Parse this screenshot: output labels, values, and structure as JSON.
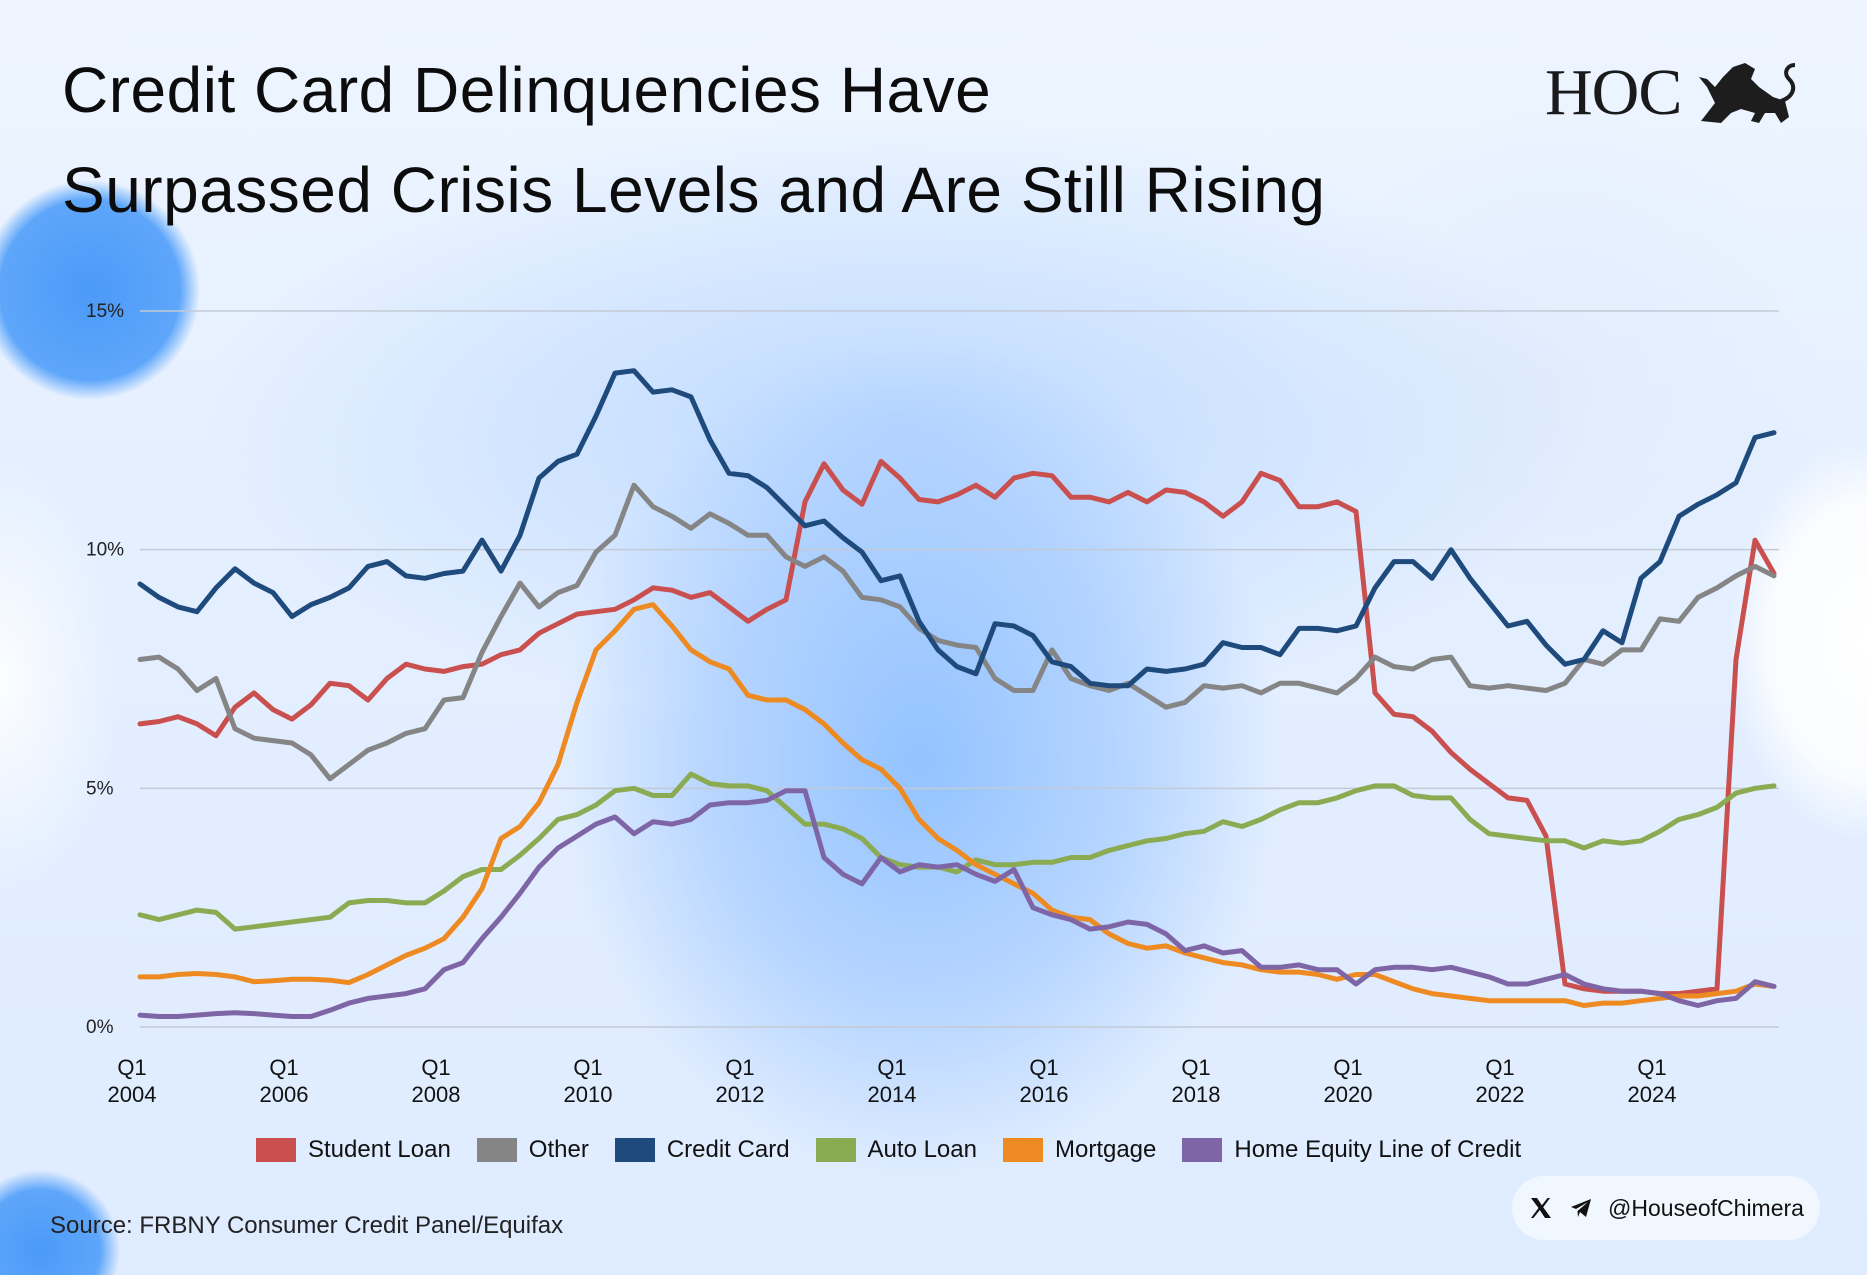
{
  "title": {
    "line1": "Credit Card Delinquencies Have",
    "line2": "Surpassed Crisis Levels and Are Still Rising"
  },
  "logo": {
    "text": "HOC",
    "icon": "lion-goat-chimera-icon"
  },
  "source": "Source: FRBNY Consumer Credit Panel/Equifax",
  "social": {
    "handle": "@HouseofChimera",
    "icons": [
      "x-logo-icon",
      "telegram-icon"
    ]
  },
  "chart_data": {
    "type": "line",
    "title": "",
    "xlabel": "",
    "ylabel": "",
    "ylim": [
      0,
      15
    ],
    "yticks": [
      0,
      5,
      10,
      15
    ],
    "ytick_labels": [
      "0%",
      "5%",
      "10%",
      "15%"
    ],
    "grid": true,
    "legend_position": "bottom",
    "x_start": "Q1 2004",
    "x_frequency": "quarterly",
    "xtick_labels": [
      {
        "q": "Q1",
        "year": "2004"
      },
      {
        "q": "Q1",
        "year": "2006"
      },
      {
        "q": "Q1",
        "year": "2008"
      },
      {
        "q": "Q1",
        "year": "2010"
      },
      {
        "q": "Q1",
        "year": "2012"
      },
      {
        "q": "Q1",
        "year": "2014"
      },
      {
        "q": "Q1",
        "year": "2016"
      },
      {
        "q": "Q1",
        "year": "2018"
      },
      {
        "q": "Q1",
        "year": "2020"
      },
      {
        "q": "Q1",
        "year": "2022"
      },
      {
        "q": "Q1",
        "year": "2024"
      }
    ],
    "series": [
      {
        "name": "Student Loan",
        "color": "#c9504f",
        "values": [
          6.35,
          6.4,
          6.5,
          6.35,
          6.1,
          6.7,
          7.0,
          6.65,
          6.45,
          6.75,
          7.2,
          7.15,
          6.85,
          7.3,
          7.6,
          7.5,
          7.45,
          7.55,
          7.6,
          7.8,
          7.9,
          8.25,
          8.45,
          8.65,
          8.7,
          8.75,
          8.95,
          9.2,
          9.15,
          9.0,
          9.1,
          8.8,
          8.5,
          8.75,
          8.95,
          11.0,
          11.8,
          11.25,
          10.95,
          11.85,
          11.5,
          11.05,
          11.0,
          11.15,
          11.35,
          11.1,
          11.5,
          11.6,
          11.55,
          11.1,
          11.1,
          11.0,
          11.2,
          11.0,
          11.25,
          11.2,
          11.0,
          10.7,
          11.0,
          11.6,
          11.45,
          10.9,
          10.9,
          11.0,
          10.8,
          7.0,
          6.55,
          6.5,
          6.2,
          5.75,
          5.4,
          5.1,
          4.8,
          4.75,
          4.0,
          0.9,
          0.8,
          0.75,
          0.75,
          0.75,
          0.7,
          0.7,
          0.75,
          0.8,
          7.7,
          10.2,
          9.5
        ]
      },
      {
        "name": "Other",
        "color": "#858585",
        "values": [
          7.7,
          7.75,
          7.5,
          7.05,
          7.3,
          6.25,
          6.05,
          6.0,
          5.95,
          5.7,
          5.2,
          5.5,
          5.8,
          5.95,
          6.15,
          6.25,
          6.85,
          6.9,
          7.85,
          8.6,
          9.3,
          8.8,
          9.1,
          9.25,
          9.95,
          10.3,
          11.35,
          10.9,
          10.7,
          10.45,
          10.75,
          10.55,
          10.3,
          10.3,
          9.85,
          9.65,
          9.85,
          9.55,
          9.0,
          8.95,
          8.8,
          8.35,
          8.1,
          8.0,
          7.95,
          7.3,
          7.05,
          7.05,
          7.9,
          7.3,
          7.15,
          7.05,
          7.2,
          6.95,
          6.7,
          6.8,
          7.15,
          7.1,
          7.15,
          7.0,
          7.2,
          7.2,
          7.1,
          7.0,
          7.3,
          7.75,
          7.55,
          7.5,
          7.7,
          7.75,
          7.15,
          7.1,
          7.15,
          7.1,
          7.05,
          7.2,
          7.7,
          7.6,
          7.9,
          7.9,
          8.55,
          8.5,
          9.0,
          9.2,
          9.45,
          9.65,
          9.45
        ]
      },
      {
        "name": "Credit Card",
        "color": "#1f4a7c",
        "values": [
          9.28,
          9.0,
          8.8,
          8.7,
          9.2,
          9.6,
          9.3,
          9.1,
          8.6,
          8.85,
          9.0,
          9.2,
          9.65,
          9.75,
          9.45,
          9.4,
          9.5,
          9.55,
          10.2,
          9.55,
          10.3,
          11.5,
          11.85,
          12.0,
          12.8,
          13.7,
          13.75,
          13.3,
          13.35,
          13.2,
          12.3,
          11.6,
          11.55,
          11.3,
          10.9,
          10.5,
          10.6,
          10.25,
          9.95,
          9.35,
          9.45,
          8.5,
          7.9,
          7.55,
          7.4,
          8.45,
          8.4,
          8.2,
          7.65,
          7.55,
          7.2,
          7.15,
          7.15,
          7.5,
          7.45,
          7.5,
          7.6,
          8.05,
          7.95,
          7.95,
          7.8,
          8.35,
          8.35,
          8.3,
          8.4,
          9.2,
          9.75,
          9.75,
          9.4,
          10.0,
          9.4,
          8.9,
          8.4,
          8.5,
          8.0,
          7.6,
          7.7,
          8.3,
          8.05,
          9.4,
          9.75,
          10.7,
          10.95,
          11.15,
          11.4,
          12.35,
          12.45
        ]
      },
      {
        "name": "Auto Loan",
        "color": "#8aab52",
        "values": [
          2.35,
          2.25,
          2.35,
          2.45,
          2.4,
          2.05,
          2.1,
          2.15,
          2.2,
          2.25,
          2.3,
          2.6,
          2.65,
          2.65,
          2.6,
          2.6,
          2.85,
          3.15,
          3.3,
          3.3,
          3.6,
          3.95,
          4.35,
          4.45,
          4.65,
          4.95,
          5.0,
          4.85,
          4.85,
          5.3,
          5.1,
          5.05,
          5.05,
          4.95,
          4.6,
          4.25,
          4.25,
          4.15,
          3.95,
          3.55,
          3.4,
          3.35,
          3.35,
          3.25,
          3.5,
          3.4,
          3.4,
          3.45,
          3.45,
          3.55,
          3.55,
          3.7,
          3.8,
          3.9,
          3.95,
          4.05,
          4.1,
          4.3,
          4.2,
          4.35,
          4.55,
          4.7,
          4.7,
          4.8,
          4.95,
          5.05,
          5.05,
          4.85,
          4.8,
          4.8,
          4.35,
          4.05,
          4.0,
          3.95,
          3.9,
          3.9,
          3.75,
          3.9,
          3.85,
          3.9,
          4.1,
          4.35,
          4.45,
          4.6,
          4.9,
          5.0,
          5.05
        ]
      },
      {
        "name": "Mortgage",
        "color": "#ee8a22",
        "values": [
          1.05,
          1.05,
          1.1,
          1.12,
          1.1,
          1.05,
          0.95,
          0.97,
          1.0,
          1.0,
          0.98,
          0.93,
          1.1,
          1.3,
          1.5,
          1.65,
          1.85,
          2.3,
          2.9,
          3.95,
          4.2,
          4.7,
          5.5,
          6.8,
          7.9,
          8.3,
          8.75,
          8.85,
          8.4,
          7.9,
          7.65,
          7.5,
          6.95,
          6.85,
          6.85,
          6.65,
          6.35,
          5.95,
          5.6,
          5.4,
          5.0,
          4.35,
          3.95,
          3.7,
          3.4,
          3.2,
          3.0,
          2.8,
          2.45,
          2.3,
          2.25,
          1.95,
          1.75,
          1.65,
          1.7,
          1.55,
          1.45,
          1.35,
          1.3,
          1.2,
          1.15,
          1.15,
          1.1,
          1.0,
          1.1,
          1.1,
          0.95,
          0.8,
          0.7,
          0.65,
          0.6,
          0.55,
          0.55,
          0.55,
          0.55,
          0.55,
          0.45,
          0.5,
          0.5,
          0.55,
          0.6,
          0.65,
          0.65,
          0.7,
          0.75,
          0.9,
          0.85
        ]
      },
      {
        "name": "Home Equity Line of Credit",
        "color": "#7e66a6",
        "values": [
          0.25,
          0.22,
          0.22,
          0.25,
          0.28,
          0.3,
          0.28,
          0.25,
          0.22,
          0.22,
          0.35,
          0.5,
          0.6,
          0.65,
          0.7,
          0.8,
          1.2,
          1.35,
          1.85,
          2.3,
          2.8,
          3.35,
          3.75,
          4.0,
          4.25,
          4.4,
          4.05,
          4.3,
          4.25,
          4.35,
          4.65,
          4.7,
          4.7,
          4.75,
          4.95,
          4.95,
          3.55,
          3.2,
          3.0,
          3.55,
          3.25,
          3.4,
          3.35,
          3.4,
          3.2,
          3.05,
          3.3,
          2.5,
          2.35,
          2.25,
          2.05,
          2.1,
          2.2,
          2.15,
          1.95,
          1.6,
          1.7,
          1.55,
          1.6,
          1.25,
          1.25,
          1.3,
          1.2,
          1.2,
          0.9,
          1.2,
          1.25,
          1.25,
          1.2,
          1.25,
          1.15,
          1.05,
          0.9,
          0.9,
          1.0,
          1.1,
          0.9,
          0.8,
          0.75,
          0.75,
          0.7,
          0.55,
          0.45,
          0.55,
          0.6,
          0.95,
          0.85
        ]
      }
    ]
  }
}
